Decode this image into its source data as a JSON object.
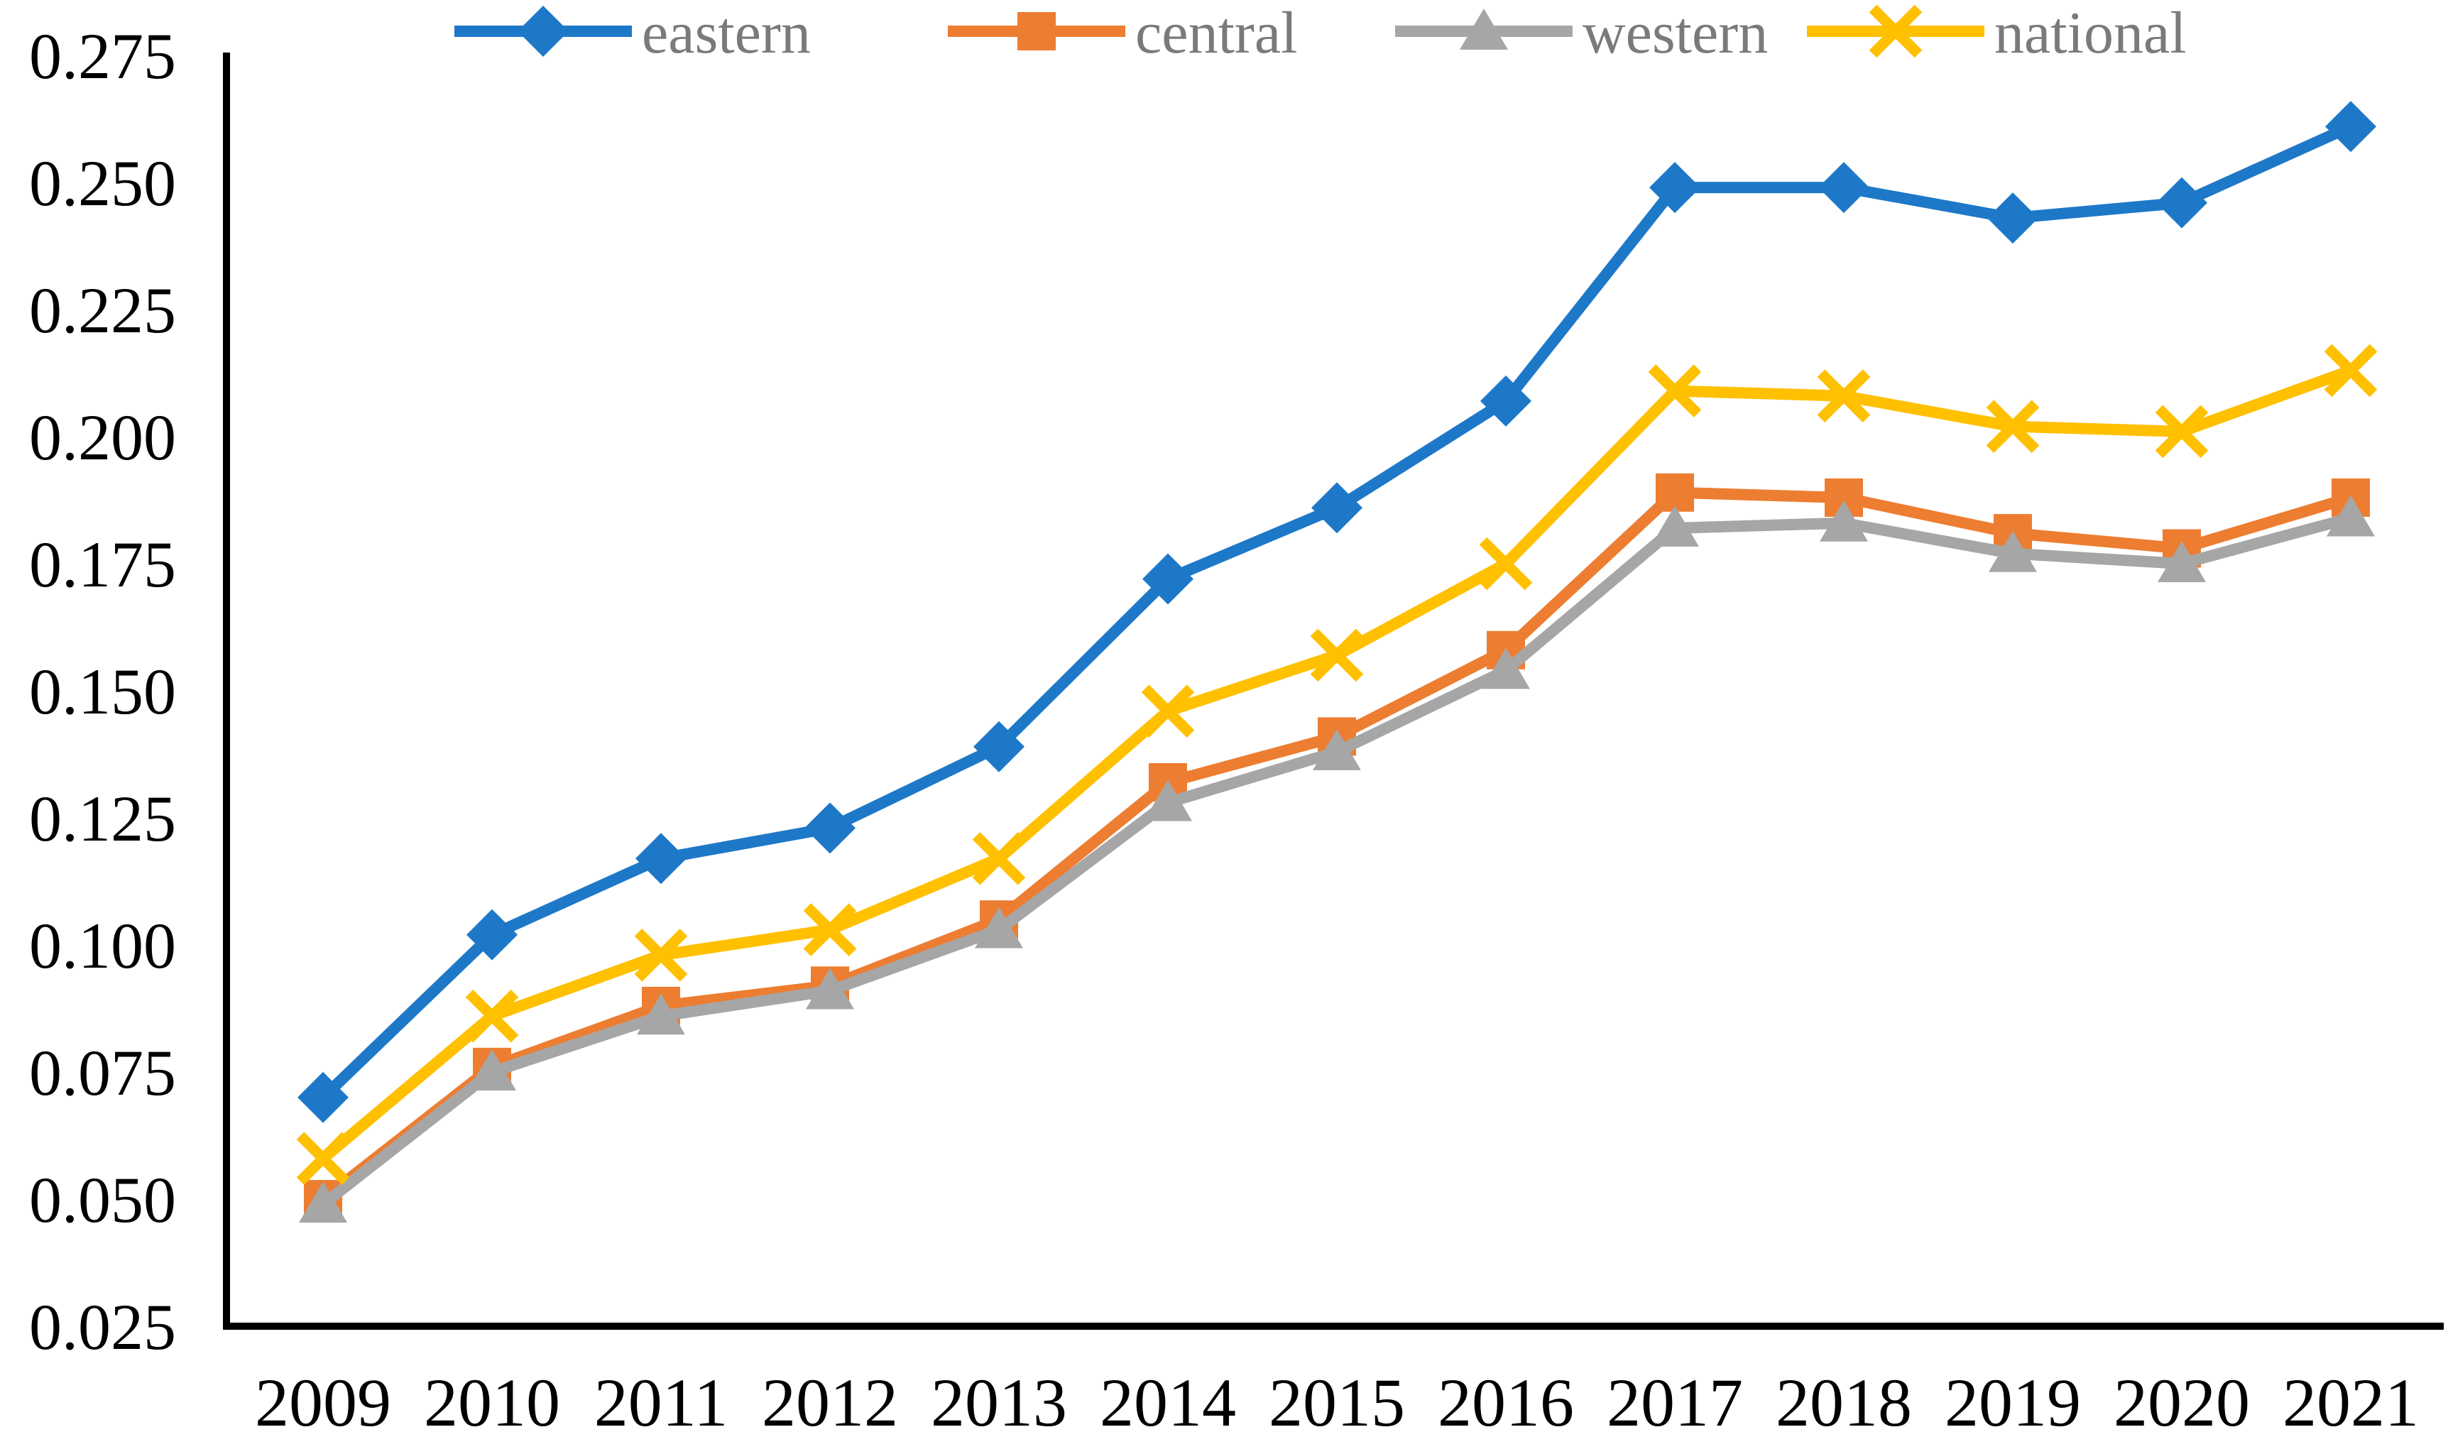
{
  "figure": {
    "background": "#ffffff",
    "axis_color": "#000000",
    "tick_label_color": "#000000",
    "legend_text_color": "#7a7a7a"
  },
  "chart_data": {
    "type": "line",
    "title": "",
    "xlabel": "",
    "ylabel": "",
    "x_categories": [
      "2009",
      "2010",
      "2011",
      "2012",
      "2013",
      "2014",
      "2015",
      "2016",
      "2017",
      "2018",
      "2019",
      "2020",
      "2021"
    ],
    "y_tick_labels": [
      "0.275",
      "0.250",
      "0.225",
      "0.200",
      "0.175",
      "0.150",
      "0.125",
      "0.100",
      "0.075",
      "0.050",
      "0.025"
    ],
    "ylim": [
      0.025,
      0.275
    ],
    "y_tick_step": 0.025,
    "grid": "off",
    "legend_position": "top",
    "series": [
      {
        "name": "eastern",
        "color": "#1e78c8",
        "marker": "diamond",
        "values": [
          0.07,
          0.102,
          0.117,
          0.123,
          0.139,
          0.172,
          0.186,
          0.207,
          0.249,
          0.249,
          0.243,
          0.246,
          0.261
        ]
      },
      {
        "name": "central",
        "color": "#ed7d31",
        "marker": "square",
        "values": [
          0.05,
          0.076,
          0.088,
          0.092,
          0.105,
          0.132,
          0.141,
          0.158,
          0.189,
          0.188,
          0.181,
          0.178,
          0.188
        ]
      },
      {
        "name": "western",
        "color": "#a6a6a6",
        "marker": "triangle",
        "values": [
          0.049,
          0.075,
          0.086,
          0.091,
          0.103,
          0.128,
          0.138,
          0.154,
          0.182,
          0.183,
          0.177,
          0.175,
          0.184
        ]
      },
      {
        "name": "national",
        "color": "#ffc000",
        "marker": "x",
        "values": [
          0.058,
          0.086,
          0.098,
          0.103,
          0.117,
          0.146,
          0.157,
          0.175,
          0.209,
          0.208,
          0.202,
          0.201,
          0.213
        ]
      }
    ]
  }
}
